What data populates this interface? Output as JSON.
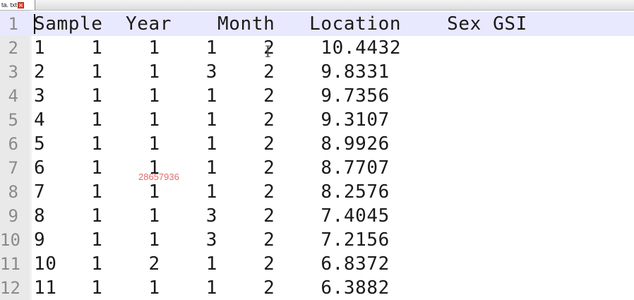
{
  "tab": {
    "label": "ta. txt",
    "close_glyph": "×"
  },
  "editor": {
    "lines": [
      {
        "num": "1",
        "text": "Sample  Year    Month   Location    Sex GSI"
      },
      {
        "num": "2",
        "text": "1    1    1    1    2    10.4432"
      },
      {
        "num": "3",
        "text": "2    1    1    3    2    9.8331"
      },
      {
        "num": "4",
        "text": "3    1    1    1    2    9.7356"
      },
      {
        "num": "5",
        "text": "4    1    1    1    2    9.3107"
      },
      {
        "num": "6",
        "text": "5    1    1    1    2    8.9926"
      },
      {
        "num": "7",
        "text": "6    1    1    1    2    8.7707"
      },
      {
        "num": "8",
        "text": "7    1    1    1    2    8.2576"
      },
      {
        "num": "9",
        "text": "8    1    1    3    2    7.4045"
      },
      {
        "num": "10",
        "text": "9    1    1    3    2    7.2156"
      },
      {
        "num": "11",
        "text": "10   1    2    1    2    6.8372"
      },
      {
        "num": "12",
        "text": "11   1    1    1    2    6.3882"
      }
    ]
  },
  "watermark": "28657936",
  "icons": {
    "tab_close": "close-icon",
    "cursor": "ibeam-cursor-icon"
  },
  "colors": {
    "current_line": "#e8e8ff",
    "gutter": "#e9e9e9",
    "tab_close": "#e04a3a",
    "watermark": "#e36b6b"
  }
}
